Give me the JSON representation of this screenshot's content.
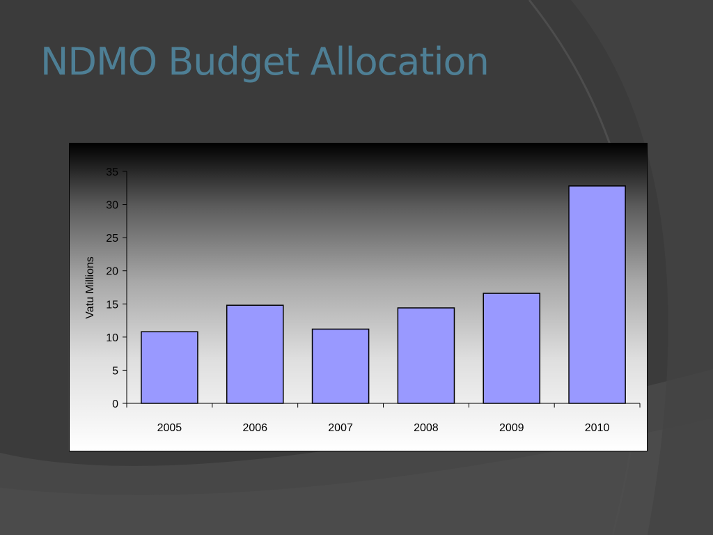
{
  "slide": {
    "title": "NDMO Budget Allocation"
  },
  "colors": {
    "title": "#4e7f95",
    "bar_fill": "#9999ff",
    "bar_stroke": "#000000"
  },
  "chart_data": {
    "type": "bar",
    "categories": [
      "2005",
      "2006",
      "2007",
      "2008",
      "2009",
      "2010"
    ],
    "values": [
      10.8,
      14.8,
      11.2,
      14.4,
      16.6,
      32.8
    ],
    "ylabel": "Vatu Millions",
    "ylim": [
      0,
      35
    ],
    "yticks": [
      0,
      5,
      10,
      15,
      20,
      25,
      30,
      35
    ],
    "grid": false,
    "legend": "none"
  }
}
